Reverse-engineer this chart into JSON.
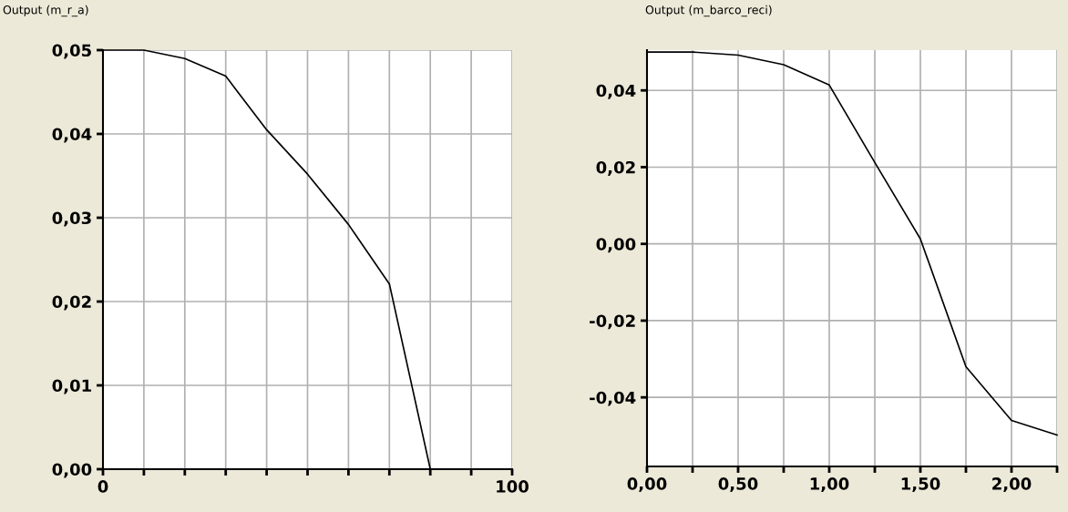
{
  "chart_data": [
    {
      "type": "line",
      "title": "Output (m_r_a)",
      "x": [
        0,
        10,
        20,
        30,
        40,
        50,
        60,
        70,
        80,
        100
      ],
      "series": [
        {
          "color": "#000000",
          "values": [
            0.05,
            0.05,
            0.049,
            0.0469,
            0.0405,
            0.0352,
            0.0292,
            0.0221,
            0.0,
            0.0
          ]
        }
      ],
      "xlim": [
        0,
        100
      ],
      "xticks": [
        0,
        {
          "value": 10,
          "label": null
        },
        {
          "value": 20,
          "label": null
        },
        {
          "value": 30,
          "label": null
        },
        {
          "value": 40,
          "label": null
        },
        {
          "value": 50,
          "label": null
        },
        {
          "value": 60,
          "label": null
        },
        {
          "value": 70,
          "label": null
        },
        {
          "value": 80,
          "label": null
        },
        {
          "value": 90,
          "label": null
        },
        100
      ],
      "ylim": [
        0,
        0.05
      ],
      "yticks": [
        {
          "value": 0,
          "label": "0,00"
        },
        {
          "value": 0.01,
          "label": "0,01"
        },
        {
          "value": 0.02,
          "label": "0,02"
        },
        {
          "value": 0.03,
          "label": "0,03"
        },
        {
          "value": 0.04,
          "label": "0,04"
        },
        {
          "value": 0.05,
          "label": "0,05"
        }
      ],
      "grid": true,
      "marker": "none",
      "line_style": "solid"
    },
    {
      "type": "line",
      "title": "Output (m_barco_reci)",
      "x": [
        0,
        0.25,
        0.5,
        0.75,
        1.0,
        1.25,
        1.5,
        1.75,
        2.0,
        2.25
      ],
      "series": [
        {
          "color": "#000000",
          "values": [
            0.05,
            0.05,
            0.0492,
            0.0467,
            0.0414,
            0.0212,
            0.0013,
            -0.032,
            -0.046,
            -0.0498
          ]
        }
      ],
      "xlim": [
        0,
        2.25
      ],
      "xticks": [
        {
          "value": 0,
          "label": "0,00"
        },
        {
          "value": 0.25,
          "label": null
        },
        {
          "value": 0.5,
          "label": "0,50"
        },
        {
          "value": 0.75,
          "label": null
        },
        {
          "value": 1.0,
          "label": "1,00"
        },
        {
          "value": 1.25,
          "label": null
        },
        {
          "value": 1.5,
          "label": "1,50"
        },
        {
          "value": 1.75,
          "label": null
        },
        {
          "value": 2.0,
          "label": "2,00"
        },
        {
          "value": 2.25,
          "label": null
        }
      ],
      "ylim": [
        -0.058,
        0.0505
      ],
      "yticks": [
        {
          "value": -0.04,
          "label": "-0,04"
        },
        {
          "value": -0.02,
          "label": "-0,02"
        },
        {
          "value": 0,
          "label": "0,00"
        },
        {
          "value": 0.02,
          "label": "0,02"
        },
        {
          "value": 0.04,
          "label": "0,04"
        }
      ],
      "grid": true,
      "marker": "none",
      "line_style": "solid"
    }
  ]
}
